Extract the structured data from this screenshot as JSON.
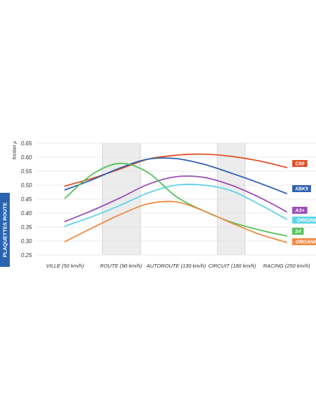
{
  "side_label": "PLAQUETTES ROUTE",
  "chart_data": {
    "type": "line",
    "ylabel": "friction μ",
    "ylim": [
      0.25,
      0.65
    ],
    "yticks": [
      "0.65",
      "0.60",
      "0.55",
      "0.50",
      "0.45",
      "0.40",
      "0.35",
      "0.30",
      "0.25"
    ],
    "categories": [
      "VILLE (50 km/h)",
      "ROUTE (90 km/h)",
      "AUTOROUTE (130 km/h)",
      "CIRCUIT (180 km/h)",
      "RACING (250 km/h)"
    ],
    "x": [
      0,
      0.5,
      1,
      1.5,
      2,
      2.5,
      3,
      3.5,
      4
    ],
    "shaded_bands": [
      "ROUTE (90 km/h)",
      "CIRCUIT (180 km/h)"
    ],
    "grid": true,
    "legend_position": "right",
    "series": [
      {
        "name": "C60",
        "color": "#e0522a",
        "label_color": "#e0522a",
        "values": [
          0.497,
          0.525,
          0.558,
          0.593,
          0.607,
          0.611,
          0.603,
          0.587,
          0.563
        ]
      },
      {
        "name": "XBK5",
        "color": "#2e5fb2",
        "label_color": "#2e5fb2",
        "values": [
          0.483,
          0.52,
          0.562,
          0.593,
          0.595,
          0.575,
          0.543,
          0.508,
          0.47
        ]
      },
      {
        "name": "A3+",
        "color": "#9b4fb8",
        "label_color": "#9b4fb8",
        "values": [
          0.37,
          0.41,
          0.455,
          0.503,
          0.53,
          0.528,
          0.5,
          0.457,
          0.405
        ]
      },
      {
        "name": "ORIGINE",
        "color": "#5fd3ea",
        "label_color": "#5fd3ea",
        "values": [
          0.353,
          0.388,
          0.428,
          0.472,
          0.5,
          0.5,
          0.48,
          0.432,
          0.378
        ]
      },
      {
        "name": "S4",
        "color": "#52c15a",
        "label_color": "#52c15a",
        "values": [
          0.453,
          0.54,
          0.578,
          0.545,
          0.46,
          0.408,
          0.368,
          0.34,
          0.318
        ]
      },
      {
        "name": "ORGANIC",
        "color": "#f08a42",
        "label_color": "#f08a42",
        "values": [
          0.298,
          0.348,
          0.395,
          0.433,
          0.44,
          0.408,
          0.365,
          0.325,
          0.295
        ]
      }
    ]
  }
}
